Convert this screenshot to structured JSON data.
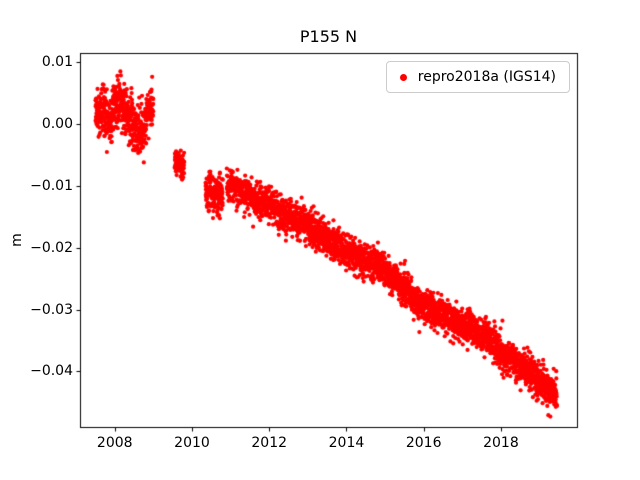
{
  "title": "P155 N",
  "legend": {
    "label": "repro2018a (IGS14)",
    "marker_color": "#ff0000",
    "position": "upper right"
  },
  "axes": {
    "ylabel": "m",
    "xlabel": ""
  },
  "chart_data": {
    "type": "scatter",
    "title": "P155 N",
    "xlabel": "",
    "ylabel": "m",
    "xlim": [
      2007.1,
      2019.97
    ],
    "ylim": [
      -0.049,
      0.0115
    ],
    "x_ticks": [
      2008,
      2010,
      2012,
      2014,
      2016,
      2018
    ],
    "x_tick_labels": [
      "2008",
      "2010",
      "2012",
      "2014",
      "2016",
      "2018"
    ],
    "y_ticks": [
      0.01,
      0.0,
      -0.01,
      -0.02,
      -0.03,
      -0.04
    ],
    "y_tick_labels": [
      "0.01",
      "0.00",
      "−0.01",
      "−0.02",
      "−0.03",
      "−0.04"
    ],
    "grid": false,
    "legend_position": "upper right",
    "series": [
      {
        "name": "repro2018a (IGS14)",
        "color": "#ff0000",
        "marker": "dot",
        "marker_radius": 2.1,
        "points_per_year": 365,
        "noise_std": 0.0013,
        "segments": [
          [
            2007.5,
            2009.0,
            1.5
          ],
          [
            2009.55,
            2009.8,
            0.8
          ],
          [
            2010.35,
            2010.8,
            1.3
          ],
          [
            2010.9,
            2019.45,
            1.0
          ]
        ],
        "trend_points": [
          [
            2007.5,
            0.001
          ],
          [
            2007.7,
            0.0025
          ],
          [
            2007.85,
            0.0005
          ],
          [
            2008.0,
            0.003
          ],
          [
            2008.15,
            0.004
          ],
          [
            2008.3,
            0.0015
          ],
          [
            2008.45,
            0.0
          ],
          [
            2008.6,
            -0.0015
          ],
          [
            2008.75,
            -0.0005
          ],
          [
            2008.9,
            0.0025
          ],
          [
            2009.0,
            0.0035
          ],
          [
            2009.55,
            -0.006
          ],
          [
            2009.8,
            -0.007
          ],
          [
            2010.35,
            -0.0105
          ],
          [
            2010.8,
            -0.012
          ],
          [
            2010.9,
            -0.01
          ],
          [
            2011.2,
            -0.0105
          ],
          [
            2011.5,
            -0.0115
          ],
          [
            2011.8,
            -0.0125
          ],
          [
            2012.0,
            -0.013
          ],
          [
            2012.3,
            -0.0145
          ],
          [
            2012.6,
            -0.0155
          ],
          [
            2012.9,
            -0.016
          ],
          [
            2013.2,
            -0.0175
          ],
          [
            2013.5,
            -0.019
          ],
          [
            2013.8,
            -0.02
          ],
          [
            2014.1,
            -0.021
          ],
          [
            2014.4,
            -0.022
          ],
          [
            2014.7,
            -0.0225
          ],
          [
            2015.0,
            -0.024
          ],
          [
            2015.3,
            -0.0255
          ],
          [
            2015.6,
            -0.027
          ],
          [
            2015.9,
            -0.029
          ],
          [
            2016.2,
            -0.03
          ],
          [
            2016.5,
            -0.0305
          ],
          [
            2016.8,
            -0.032
          ],
          [
            2017.1,
            -0.033
          ],
          [
            2017.4,
            -0.0335
          ],
          [
            2017.7,
            -0.035
          ],
          [
            2018.0,
            -0.037
          ],
          [
            2018.3,
            -0.038
          ],
          [
            2018.6,
            -0.0395
          ],
          [
            2018.9,
            -0.041
          ],
          [
            2019.2,
            -0.0425
          ],
          [
            2019.45,
            -0.044
          ]
        ]
      }
    ]
  }
}
